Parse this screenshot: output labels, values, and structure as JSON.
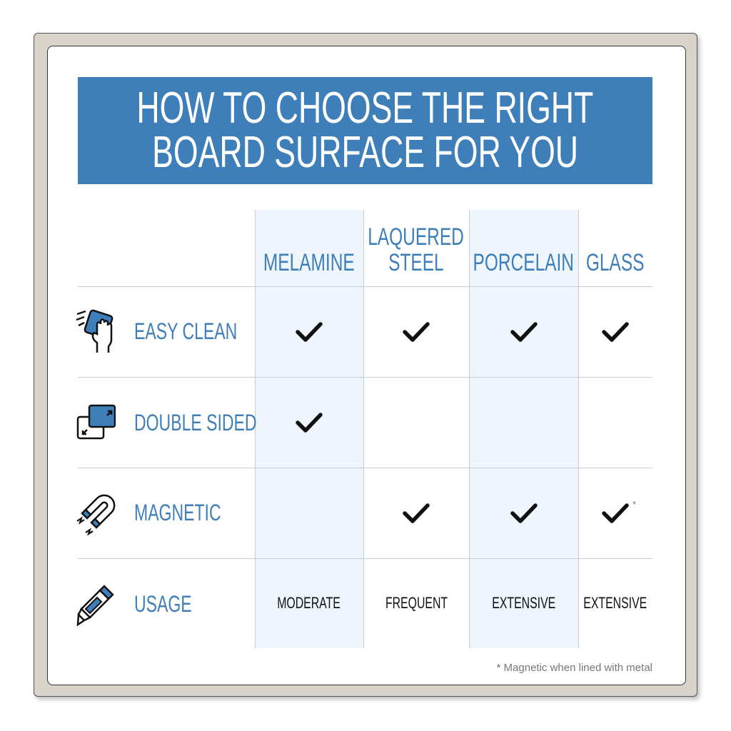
{
  "title_lines": [
    "HOW TO CHOOSE THE RIGHT",
    "BOARD SURFACE FOR YOU"
  ],
  "columns": [
    {
      "lines": [
        "MELAMINE"
      ]
    },
    {
      "lines": [
        "LAQUERED",
        "STEEL"
      ]
    },
    {
      "lines": [
        "PORCELAIN"
      ]
    },
    {
      "lines": [
        "GLASS"
      ]
    }
  ],
  "rows": [
    {
      "label": "EASY CLEAN",
      "icon": "hand-wipe-icon",
      "cells": [
        true,
        true,
        true,
        true
      ]
    },
    {
      "label": "DOUBLE SIDED",
      "icon": "double-sided-icon",
      "cells": [
        true,
        false,
        false,
        false
      ]
    },
    {
      "label": "MAGNETIC",
      "icon": "magnet-icon",
      "cells": [
        false,
        true,
        true,
        true
      ],
      "glass_note": "*"
    },
    {
      "label": "USAGE",
      "icon": "marker-icon",
      "values": [
        "MODERATE",
        "FREQUENT",
        "EXTENSIVE",
        "EXTENSIVE"
      ]
    }
  ],
  "footnote": "* Magnetic when lined with metal",
  "colors": {
    "accent": "#3f7fb9",
    "shade": "#eef5fc",
    "frame": "#d8d4cc"
  }
}
